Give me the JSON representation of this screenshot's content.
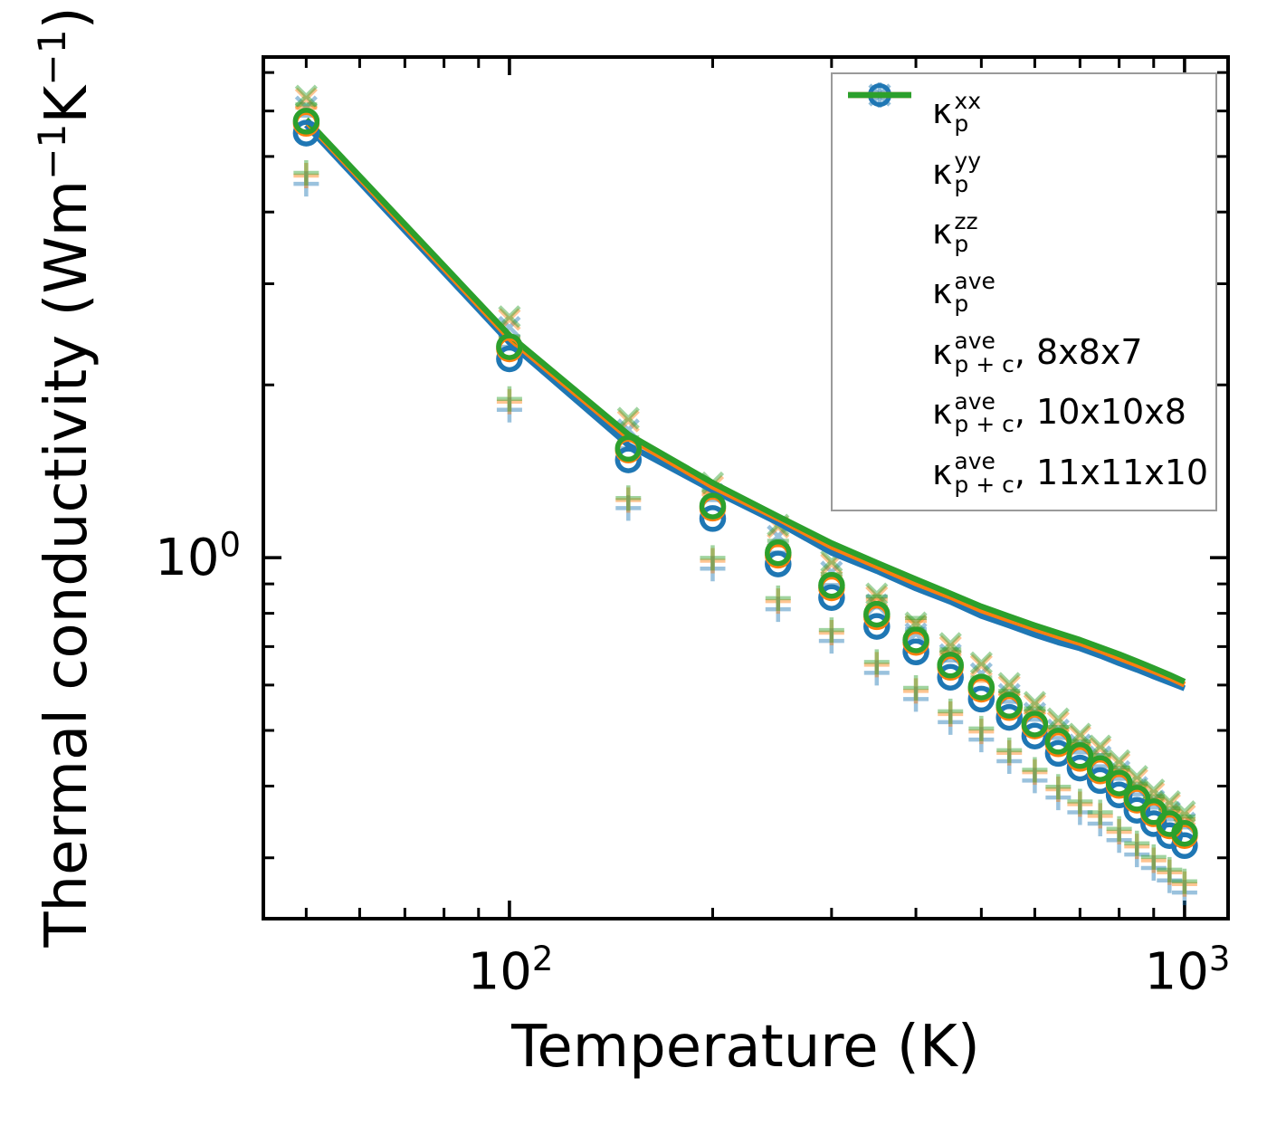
{
  "labels": {
    "xlabel": "Temperature (K)",
    "ylabel_prefix": "Thermal conductivity (Wm",
    "ylabel_sup1": "−1",
    "ylabel_mid": "K",
    "ylabel_sup2": "−1",
    "ylabel_suffix": ")"
  },
  "colors": {
    "blue": "#1f77b4",
    "orange": "#ff7f0e",
    "green": "#2ca02c",
    "light_marker_opacity": 0.45,
    "legend_border": "#9a9a9a",
    "spine": "#000000"
  },
  "axes": {
    "x_tick_labels": [
      {
        "base": "10",
        "exp": "2",
        "value": 100
      },
      {
        "base": "10",
        "exp": "3",
        "value": 1000
      }
    ],
    "y_tick_labels": [
      {
        "base": "10",
        "exp": "0",
        "value": 1
      }
    ]
  },
  "legend": {
    "entries": [
      {
        "id": "kp-xx",
        "marker": "plus",
        "color": "blue",
        "light": true,
        "kappa": "κ",
        "sup": "xx",
        "sub": "p",
        "rest": ""
      },
      {
        "id": "kp-yy",
        "marker": "cross",
        "color": "blue",
        "light": true,
        "kappa": "κ",
        "sup": "yy",
        "sub": "p",
        "rest": ""
      },
      {
        "id": "kp-zz",
        "marker": "dash",
        "color": "blue",
        "light": true,
        "kappa": "κ",
        "sup": "zz",
        "sub": "p",
        "rest": ""
      },
      {
        "id": "kp-ave",
        "marker": "circle",
        "color": "blue",
        "light": false,
        "kappa": "κ",
        "sup": "ave",
        "sub": "p",
        "rest": ""
      },
      {
        "id": "kpc-ave-8x8x7",
        "marker": "line",
        "color": "blue",
        "light": false,
        "kappa": "κ",
        "sup": "ave",
        "sub": "p + c",
        "rest": ", 8x8x7"
      },
      {
        "id": "kpc-ave-10x10x8",
        "marker": "line",
        "color": "orange",
        "light": false,
        "kappa": "κ",
        "sup": "ave",
        "sub": "p + c",
        "rest": ", 10x10x8"
      },
      {
        "id": "kpc-ave-11x11x10",
        "marker": "line",
        "color": "green",
        "light": false,
        "kappa": "κ",
        "sup": "ave",
        "sub": "p + c",
        "rest": ", 11x11x10"
      }
    ]
  },
  "chart_data": {
    "type": "scatter",
    "title": "",
    "xlabel": "Temperature (K)",
    "ylabel": "Thermal conductivity (Wm−1K−1)",
    "xscale": "log",
    "yscale": "log",
    "xlim": [
      43.2,
      1160
    ],
    "ylim": [
      0.235,
      7.45
    ],
    "x_major_ticks": [
      100,
      1000
    ],
    "x_minor_ticks": [
      50,
      60,
      70,
      80,
      90,
      200,
      300,
      400,
      500,
      600,
      700,
      800,
      900
    ],
    "y_major_ticks": [
      1
    ],
    "y_minor_ticks": [
      0.3,
      0.4,
      0.5,
      0.6,
      0.7,
      0.8,
      0.9,
      2,
      3,
      4,
      5,
      6,
      7
    ],
    "grid": false,
    "legend_position": "upper right",
    "temperatures_K": [
      50,
      100,
      150,
      200,
      250,
      300,
      350,
      400,
      450,
      500,
      550,
      600,
      650,
      700,
      750,
      800,
      850,
      900,
      950,
      1000
    ],
    "meshes": [
      {
        "name": "8x8x7",
        "color": "blue",
        "kp_xx": [
          4.48,
          1.81,
          1.22,
          0.957,
          0.813,
          0.716,
          0.63,
          0.567,
          0.517,
          0.482,
          0.442,
          0.409,
          0.382,
          0.36,
          0.344,
          0.322,
          0.304,
          0.288,
          0.274,
          0.261
        ],
        "kp_yy": [
          6.1,
          2.52,
          1.67,
          1.29,
          1.09,
          0.944,
          0.828,
          0.737,
          0.678,
          0.628,
          0.578,
          0.536,
          0.501,
          0.472,
          0.45,
          0.424,
          0.398,
          0.377,
          0.36,
          0.345
        ],
        "kp_zz": [
          5.89,
          2.33,
          1.55,
          1.26,
          1.02,
          0.896,
          0.819,
          0.751,
          0.662,
          0.591,
          0.561,
          0.522,
          0.485,
          0.458,
          0.433,
          0.412,
          0.387,
          0.367,
          0.35,
          0.339
        ],
        "kp_ave": [
          5.49,
          2.22,
          1.48,
          1.17,
          0.975,
          0.852,
          0.759,
          0.685,
          0.619,
          0.567,
          0.527,
          0.489,
          0.456,
          0.43,
          0.409,
          0.386,
          0.363,
          0.344,
          0.328,
          0.315
        ],
        "kpc_ave_line": [
          5.67,
          2.37,
          1.57,
          1.31,
          1.15,
          1.02,
          0.948,
          0.884,
          0.838,
          0.792,
          0.762,
          0.734,
          0.712,
          0.695,
          0.675,
          0.655,
          0.638,
          0.621,
          0.606,
          0.592
        ]
      },
      {
        "name": "10x10x8",
        "color": "orange",
        "kp_xx": [
          4.63,
          1.87,
          1.26,
          0.988,
          0.84,
          0.74,
          0.651,
          0.586,
          0.534,
          0.498,
          0.457,
          0.423,
          0.395,
          0.372,
          0.355,
          0.333,
          0.314,
          0.297,
          0.283,
          0.27
        ],
        "kp_yy": [
          6.3,
          2.6,
          1.73,
          1.33,
          1.13,
          0.975,
          0.855,
          0.761,
          0.7,
          0.649,
          0.597,
          0.554,
          0.517,
          0.488,
          0.465,
          0.438,
          0.411,
          0.389,
          0.372,
          0.356
        ],
        "kp_zz": [
          6.08,
          2.41,
          1.6,
          1.3,
          1.05,
          0.926,
          0.846,
          0.776,
          0.684,
          0.61,
          0.58,
          0.539,
          0.501,
          0.473,
          0.447,
          0.426,
          0.4,
          0.379,
          0.362,
          0.35
        ],
        "kp_ave": [
          5.71,
          2.31,
          1.54,
          1.22,
          1.01,
          0.886,
          0.789,
          0.712,
          0.644,
          0.59,
          0.548,
          0.509,
          0.474,
          0.447,
          0.425,
          0.401,
          0.378,
          0.358,
          0.341,
          0.328
        ],
        "kpc_ave_line": [
          5.76,
          2.41,
          1.62,
          1.33,
          1.17,
          1.045,
          0.966,
          0.902,
          0.855,
          0.81,
          0.779,
          0.752,
          0.729,
          0.71,
          0.689,
          0.669,
          0.651,
          0.634,
          0.618,
          0.601
        ]
      },
      {
        "name": "11x11x10",
        "color": "green",
        "kp_xx": [
          4.68,
          1.89,
          1.27,
          0.999,
          0.85,
          0.748,
          0.658,
          0.593,
          0.54,
          0.504,
          0.462,
          0.427,
          0.399,
          0.376,
          0.36,
          0.337,
          0.318,
          0.301,
          0.286,
          0.273
        ],
        "kp_yy": [
          6.37,
          2.63,
          1.75,
          1.35,
          1.14,
          0.986,
          0.865,
          0.77,
          0.709,
          0.656,
          0.604,
          0.56,
          0.524,
          0.493,
          0.47,
          0.443,
          0.416,
          0.394,
          0.376,
          0.361
        ],
        "kp_zz": [
          6.16,
          2.43,
          1.62,
          1.32,
          1.07,
          0.936,
          0.856,
          0.785,
          0.692,
          0.618,
          0.586,
          0.546,
          0.507,
          0.479,
          0.453,
          0.431,
          0.404,
          0.384,
          0.366,
          0.354
        ],
        "kp_ave": [
          5.76,
          2.33,
          1.55,
          1.23,
          1.02,
          0.895,
          0.797,
          0.719,
          0.65,
          0.595,
          0.553,
          0.513,
          0.479,
          0.452,
          0.429,
          0.405,
          0.381,
          0.361,
          0.344,
          0.331
        ],
        "kpc_ave_line": [
          5.8,
          2.44,
          1.64,
          1.35,
          1.18,
          1.06,
          0.98,
          0.917,
          0.866,
          0.822,
          0.79,
          0.762,
          0.739,
          0.719,
          0.698,
          0.679,
          0.66,
          0.642,
          0.625,
          0.608
        ]
      }
    ]
  }
}
